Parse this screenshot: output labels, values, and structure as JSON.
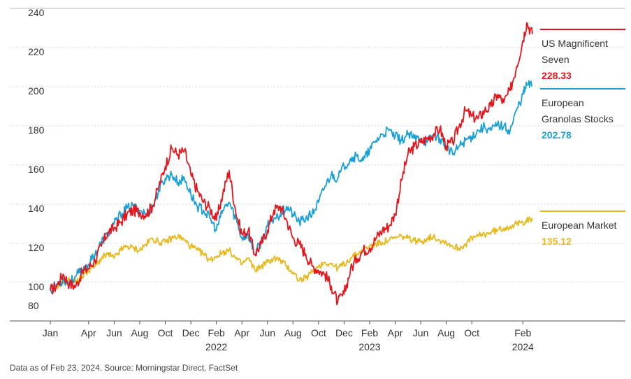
{
  "chart_data": {
    "type": "line",
    "ylim": [
      80,
      240
    ],
    "y_ticks": [
      "80",
      "100",
      "120",
      "140",
      "160",
      "180",
      "200",
      "220",
      "240"
    ],
    "x_ticks": [
      {
        "label": "Jan",
        "month": 0
      },
      {
        "label": "Apr",
        "month": 3
      },
      {
        "label": "Jun",
        "month": 5
      },
      {
        "label": "Aug",
        "month": 7
      },
      {
        "label": "Oct",
        "month": 9
      },
      {
        "label": "Dec",
        "month": 11
      },
      {
        "label": "Feb",
        "month": 13,
        "year": "2022"
      },
      {
        "label": "Apr",
        "month": 15
      },
      {
        "label": "Jun",
        "month": 17
      },
      {
        "label": "Aug",
        "month": 19
      },
      {
        "label": "Oct",
        "month": 21
      },
      {
        "label": "Dec",
        "month": 23
      },
      {
        "label": "Feb",
        "month": 25,
        "year": "2023"
      },
      {
        "label": "Apr",
        "month": 27
      },
      {
        "label": "Jun",
        "month": 29
      },
      {
        "label": "Aug",
        "month": 31
      },
      {
        "label": "Oct",
        "month": 33
      },
      {
        "label": "Feb",
        "month": 37,
        "year": "2024"
      }
    ],
    "x_range_months": [
      0,
      37.75
    ],
    "grid": "horizontal dotted",
    "legend_position": "right",
    "series": [
      {
        "name": "US Magnificent Seven",
        "name_lines": [
          "US Magnificent",
          "Seven"
        ],
        "final_value": "228.33",
        "color": "#e8141c",
        "points": [
          [
            0,
            100
          ],
          [
            0.5,
            102
          ],
          [
            1,
            108
          ],
          [
            1.5,
            103
          ],
          [
            2,
            102
          ],
          [
            2.5,
            109
          ],
          [
            3,
            111
          ],
          [
            3.5,
            115
          ],
          [
            4,
            122
          ],
          [
            4.5,
            129
          ],
          [
            5,
            131
          ],
          [
            5.5,
            134
          ],
          [
            6,
            138
          ],
          [
            6.5,
            140
          ],
          [
            7,
            139
          ],
          [
            7.5,
            138
          ],
          [
            8,
            142
          ],
          [
            8.5,
            152
          ],
          [
            9,
            162
          ],
          [
            9.5,
            171
          ],
          [
            10,
            168
          ],
          [
            10.5,
            170
          ],
          [
            11,
            158
          ],
          [
            11.5,
            150
          ],
          [
            12,
            144
          ],
          [
            12.5,
            141
          ],
          [
            13,
            135
          ],
          [
            13.5,
            148
          ],
          [
            14,
            160
          ],
          [
            14.5,
            140
          ],
          [
            15,
            128
          ],
          [
            15.5,
            130
          ],
          [
            16,
            118
          ],
          [
            16.5,
            123
          ],
          [
            17,
            130
          ],
          [
            17.5,
            140
          ],
          [
            18,
            142
          ],
          [
            18.5,
            135
          ],
          [
            19,
            126
          ],
          [
            19.5,
            123
          ],
          [
            20,
            118
          ],
          [
            20.5,
            112
          ],
          [
            21,
            110
          ],
          [
            21.5,
            108
          ],
          [
            22,
            102
          ],
          [
            22.5,
            94
          ],
          [
            23,
            98
          ],
          [
            23.5,
            110
          ],
          [
            24,
            116
          ],
          [
            24.5,
            120
          ],
          [
            25,
            121
          ],
          [
            25.5,
            126
          ],
          [
            26,
            130
          ],
          [
            26.5,
            132
          ],
          [
            27,
            138
          ],
          [
            27.5,
            155
          ],
          [
            28,
            168
          ],
          [
            28.5,
            172
          ],
          [
            29,
            174
          ],
          [
            29.5,
            176
          ],
          [
            30,
            178
          ],
          [
            30.5,
            181
          ],
          [
            31,
            172
          ],
          [
            31.5,
            174
          ],
          [
            32,
            182
          ],
          [
            32.5,
            190
          ],
          [
            33,
            187
          ],
          [
            33.5,
            186
          ],
          [
            34,
            190
          ],
          [
            34.5,
            192
          ],
          [
            35,
            198
          ],
          [
            35.5,
            194
          ],
          [
            36,
            200
          ],
          [
            36.5,
            212
          ],
          [
            37,
            225
          ],
          [
            37.3,
            234
          ],
          [
            37.75,
            228.33
          ]
        ]
      },
      {
        "name": "European Granolas Stocks",
        "name_lines": [
          "European",
          "Granolas Stocks"
        ],
        "final_value": "202.78",
        "color": "#1aa0d8",
        "points": [
          [
            0,
            100
          ],
          [
            0.5,
            103
          ],
          [
            1,
            105
          ],
          [
            1.5,
            104
          ],
          [
            2,
            107
          ],
          [
            2.5,
            110
          ],
          [
            3,
            113
          ],
          [
            3.5,
            118
          ],
          [
            4,
            124
          ],
          [
            4.5,
            128
          ],
          [
            5,
            133
          ],
          [
            5.5,
            138
          ],
          [
            6,
            141
          ],
          [
            6.5,
            142
          ],
          [
            7,
            140
          ],
          [
            7.5,
            138
          ],
          [
            8,
            142
          ],
          [
            8.5,
            150
          ],
          [
            9,
            156
          ],
          [
            9.5,
            158
          ],
          [
            10,
            154
          ],
          [
            10.5,
            156
          ],
          [
            11,
            148
          ],
          [
            11.5,
            142
          ],
          [
            12,
            140
          ],
          [
            12.5,
            136
          ],
          [
            13,
            130
          ],
          [
            13.5,
            140
          ],
          [
            14,
            144
          ],
          [
            14.5,
            136
          ],
          [
            15,
            126
          ],
          [
            15.5,
            128
          ],
          [
            16,
            118
          ],
          [
            16.5,
            124
          ],
          [
            17,
            132
          ],
          [
            17.5,
            136
          ],
          [
            18,
            138
          ],
          [
            18.5,
            142
          ],
          [
            19,
            138
          ],
          [
            19.5,
            134
          ],
          [
            20,
            136
          ],
          [
            20.5,
            138
          ],
          [
            21,
            144
          ],
          [
            21.5,
            152
          ],
          [
            22,
            158
          ],
          [
            22.5,
            156
          ],
          [
            23,
            162
          ],
          [
            23.5,
            166
          ],
          [
            24,
            167
          ],
          [
            24.5,
            165
          ],
          [
            25,
            170
          ],
          [
            25.5,
            175
          ],
          [
            26,
            178
          ],
          [
            26.5,
            180
          ],
          [
            27,
            177
          ],
          [
            27.5,
            175
          ],
          [
            28,
            178
          ],
          [
            28.5,
            176
          ],
          [
            29,
            176
          ],
          [
            29.5,
            174
          ],
          [
            30,
            178
          ],
          [
            30.5,
            176
          ],
          [
            31,
            172
          ],
          [
            31.5,
            168
          ],
          [
            32,
            172
          ],
          [
            32.5,
            175
          ],
          [
            33,
            177
          ],
          [
            33.5,
            180
          ],
          [
            34,
            182
          ],
          [
            34.5,
            180
          ],
          [
            35,
            183
          ],
          [
            35.5,
            182
          ],
          [
            36,
            180
          ],
          [
            36.5,
            190
          ],
          [
            37,
            198
          ],
          [
            37.3,
            203
          ],
          [
            37.75,
            202.78
          ]
        ]
      },
      {
        "name": "European Market",
        "name_lines": [
          "European Market"
        ],
        "final_value": "135.12",
        "color": "#e8b91c",
        "points": [
          [
            0,
            100
          ],
          [
            0.5,
            102
          ],
          [
            1,
            104
          ],
          [
            1.5,
            105
          ],
          [
            2,
            104
          ],
          [
            2.5,
            107
          ],
          [
            3,
            110
          ],
          [
            3.5,
            112
          ],
          [
            4,
            116
          ],
          [
            4.5,
            118
          ],
          [
            5,
            116
          ],
          [
            5.5,
            120
          ],
          [
            6,
            122
          ],
          [
            6.5,
            121
          ],
          [
            7,
            120
          ],
          [
            7.5,
            123
          ],
          [
            8,
            126
          ],
          [
            8.5,
            124
          ],
          [
            9,
            124
          ],
          [
            9.5,
            126
          ],
          [
            10,
            127
          ],
          [
            10.5,
            125
          ],
          [
            11,
            122
          ],
          [
            11.5,
            120
          ],
          [
            12,
            118
          ],
          [
            12.5,
            115
          ],
          [
            13,
            117
          ],
          [
            13.5,
            119
          ],
          [
            14,
            120
          ],
          [
            14.5,
            116
          ],
          [
            15,
            113
          ],
          [
            15.5,
            116
          ],
          [
            16,
            110
          ],
          [
            16.5,
            112
          ],
          [
            17,
            114
          ],
          [
            17.5,
            116
          ],
          [
            18,
            115
          ],
          [
            18.5,
            112
          ],
          [
            19,
            109
          ],
          [
            19.5,
            105
          ],
          [
            20,
            106
          ],
          [
            20.5,
            109
          ],
          [
            21,
            112
          ],
          [
            21.5,
            114
          ],
          [
            22,
            113
          ],
          [
            22.5,
            111
          ],
          [
            23,
            113
          ],
          [
            23.5,
            116
          ],
          [
            24,
            118
          ],
          [
            24.5,
            120
          ],
          [
            25,
            122
          ],
          [
            25.5,
            123
          ],
          [
            26,
            124
          ],
          [
            26.5,
            125
          ],
          [
            27,
            126
          ],
          [
            27.5,
            127
          ],
          [
            28,
            126
          ],
          [
            28.5,
            125
          ],
          [
            29,
            124
          ],
          [
            29.5,
            126
          ],
          [
            30,
            127
          ],
          [
            30.5,
            125
          ],
          [
            31,
            124
          ],
          [
            31.5,
            122
          ],
          [
            32,
            121
          ],
          [
            32.5,
            123
          ],
          [
            33,
            126
          ],
          [
            33.5,
            127
          ],
          [
            34,
            128
          ],
          [
            34.5,
            129
          ],
          [
            35,
            130
          ],
          [
            35.5,
            131
          ],
          [
            36,
            132
          ],
          [
            36.5,
            133
          ],
          [
            37,
            134
          ],
          [
            37.3,
            135
          ],
          [
            37.75,
            135.12
          ]
        ]
      }
    ]
  },
  "footnote": "Data as of Feb 23, 2024. Source: Morningstar Direct, FactSet"
}
